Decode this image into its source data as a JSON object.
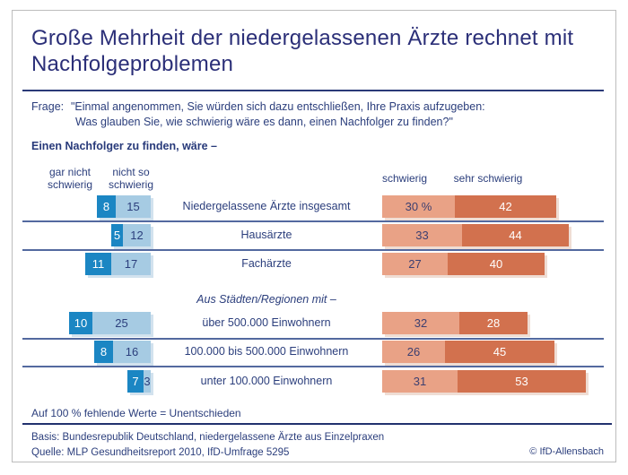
{
  "header": {
    "title": "Große Mehrheit der niedergelassenen Ärzte rechnet mit Nachfolgeproblemen"
  },
  "question": {
    "prefix": "Frage:",
    "line1": "\"Einmal angenommen, Sie würden sich dazu entschließen, Ihre Praxis aufzugeben:",
    "line2": "Was glauben Sie, wie schwierig wäre es dann, einen Nachfolger zu finden?\""
  },
  "subtitle": "Einen Nachfolger zu finden, wäre –",
  "chart_data": {
    "type": "bar",
    "subtype": "diverging-stacked-horizontal",
    "unit": "%",
    "legend_left": [
      "gar nicht\nschwierig",
      "nicht so\nschwierig"
    ],
    "legend_right": [
      "schwierig",
      "sehr schwierig"
    ],
    "section_header": "Aus Städten/Regionen mit –",
    "section_header_before_row_index": 3,
    "rows": [
      {
        "label": "Niedergelassene Ärzte insgesamt",
        "values": {
          "gar_nicht": 8,
          "nicht_so": 15,
          "schwierig": 30,
          "sehr": 42
        },
        "display": {
          "gar_nicht": "8",
          "nicht_so": "15",
          "schwierig": "30 %",
          "sehr": "42"
        }
      },
      {
        "label": "Hausärzte",
        "values": {
          "gar_nicht": 5,
          "nicht_so": 12,
          "schwierig": 33,
          "sehr": 44
        },
        "display": {
          "gar_nicht": "5",
          "nicht_so": "12",
          "schwierig": "33",
          "sehr": "44"
        }
      },
      {
        "label": "Fachärzte",
        "values": {
          "gar_nicht": 11,
          "nicht_so": 17,
          "schwierig": 27,
          "sehr": 40
        },
        "display": {
          "gar_nicht": "11",
          "nicht_so": "17",
          "schwierig": "27",
          "sehr": "40"
        }
      },
      {
        "label": "über 500.000 Einwohnern",
        "values": {
          "gar_nicht": 10,
          "nicht_so": 25,
          "schwierig": 32,
          "sehr": 28
        },
        "display": {
          "gar_nicht": "10",
          "nicht_so": "25",
          "schwierig": "32",
          "sehr": "28"
        }
      },
      {
        "label": "100.000 bis 500.000 Einwohnern",
        "values": {
          "gar_nicht": 8,
          "nicht_so": 16,
          "schwierig": 26,
          "sehr": 45
        },
        "display": {
          "gar_nicht": "8",
          "nicht_so": "16",
          "schwierig": "26",
          "sehr": "45"
        }
      },
      {
        "label": "unter 100.000 Einwohnern",
        "values": {
          "gar_nicht": 7,
          "nicht_so": 3,
          "schwierig": 31,
          "sehr": 53
        },
        "display": {
          "gar_nicht": "7",
          "nicht_so": "3",
          "schwierig": "31",
          "sehr": "53"
        }
      }
    ],
    "colors": {
      "gar_nicht_schwierig": "#1b86c3",
      "nicht_so_schwierig": "#a6cbe3",
      "schwierig": "#e9a286",
      "sehr_schwierig": "#d2714e",
      "text_navy": "#2b3678"
    }
  },
  "footnote": "Auf 100 % fehlende Werte = Unentschieden",
  "footer": {
    "basis": "Basis: Bundesrepublik Deutschland, niedergelassene Ärzte aus Einzelpraxen",
    "quelle": "Quelle: MLP Gesundheitsreport 2010, IfD-Umfrage 5295",
    "copyright": "© IfD-Allensbach"
  }
}
